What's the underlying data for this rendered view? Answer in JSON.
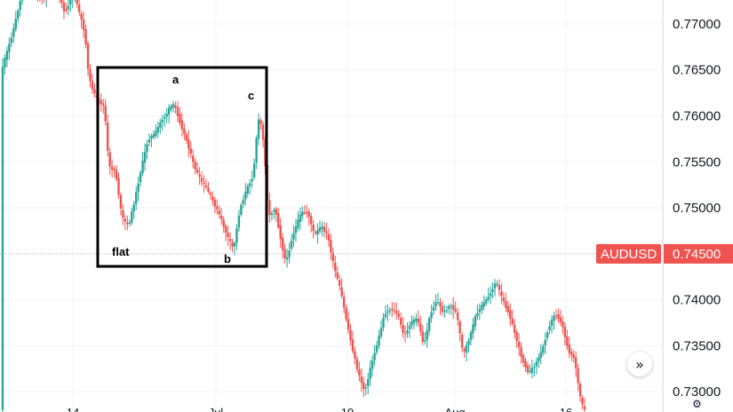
{
  "chart_data": {
    "type": "candlestick",
    "symbol": "AUDUSD",
    "current_price": "0.74500",
    "colors": {
      "up": "#26a69a",
      "down": "#ef5350",
      "tag": "#ef5350",
      "box": "#000000",
      "grid": "#f0f3fa"
    },
    "y_range": [
      0.7278,
      0.7726
    ],
    "y_ticks": [
      "0.77000",
      "0.76500",
      "0.76000",
      "0.75500",
      "0.75000",
      "0.74500",
      "0.74000",
      "0.73500",
      "0.73000"
    ],
    "x_ticks": [
      "14",
      "Jul",
      "19",
      "Aug",
      "16"
    ],
    "annotations": {
      "pattern": "flat",
      "a": "a",
      "b": "b",
      "c": "c"
    },
    "path_knots": [
      [
        0,
        0.765
      ],
      [
        5,
        0.769
      ],
      [
        9,
        0.773
      ],
      [
        14,
        0.774
      ],
      [
        19,
        0.7725
      ],
      [
        24,
        0.7745
      ],
      [
        29,
        0.7712
      ],
      [
        33,
        0.7735
      ],
      [
        38,
        0.769
      ],
      [
        40,
        0.764
      ],
      [
        43,
        0.762
      ],
      [
        47,
        0.761
      ],
      [
        49,
        0.7545
      ],
      [
        52,
        0.754
      ],
      [
        55,
        0.749
      ],
      [
        58,
        0.748
      ],
      [
        61,
        0.751
      ],
      [
        64,
        0.7545
      ],
      [
        67,
        0.7575
      ],
      [
        70,
        0.758
      ],
      [
        73,
        0.7595
      ],
      [
        75,
        0.76
      ],
      [
        77,
        0.761
      ],
      [
        79,
        0.7612
      ],
      [
        82,
        0.759
      ],
      [
        85,
        0.757
      ],
      [
        88,
        0.7545
      ],
      [
        91,
        0.753
      ],
      [
        94,
        0.752
      ],
      [
        97,
        0.7505
      ],
      [
        100,
        0.749
      ],
      [
        103,
        0.747
      ],
      [
        106,
        0.7455
      ],
      [
        109,
        0.75
      ],
      [
        112,
        0.752
      ],
      [
        115,
        0.7535
      ],
      [
        117,
        0.759
      ],
      [
        118,
        0.76
      ],
      [
        120,
        0.7565
      ],
      [
        122,
        0.749
      ],
      [
        125,
        0.75
      ],
      [
        128,
        0.746
      ],
      [
        130,
        0.744
      ],
      [
        133,
        0.747
      ],
      [
        137,
        0.7495
      ],
      [
        140,
        0.7495
      ],
      [
        143,
        0.747
      ],
      [
        146,
        0.748
      ],
      [
        149,
        0.747
      ],
      [
        152,
        0.7435
      ],
      [
        155,
        0.741
      ],
      [
        157,
        0.7385
      ],
      [
        160,
        0.735
      ],
      [
        163,
        0.732
      ],
      [
        166,
        0.73
      ],
      [
        169,
        0.733
      ],
      [
        172,
        0.7355
      ],
      [
        175,
        0.7385
      ],
      [
        178,
        0.739
      ],
      [
        181,
        0.7385
      ],
      [
        184,
        0.736
      ],
      [
        187,
        0.7375
      ],
      [
        190,
        0.738
      ],
      [
        193,
        0.735
      ],
      [
        196,
        0.7385
      ],
      [
        199,
        0.74
      ],
      [
        202,
        0.7385
      ],
      [
        205,
        0.7395
      ],
      [
        208,
        0.7385
      ],
      [
        211,
        0.734
      ],
      [
        214,
        0.736
      ],
      [
        217,
        0.7385
      ],
      [
        220,
        0.7395
      ],
      [
        223,
        0.7405
      ],
      [
        226,
        0.742
      ],
      [
        229,
        0.74
      ],
      [
        232,
        0.7385
      ],
      [
        235,
        0.736
      ],
      [
        238,
        0.7335
      ],
      [
        241,
        0.732
      ],
      [
        244,
        0.733
      ],
      [
        247,
        0.7345
      ],
      [
        250,
        0.737
      ],
      [
        253,
        0.7385
      ],
      [
        256,
        0.7375
      ],
      [
        259,
        0.7345
      ],
      [
        262,
        0.7335
      ],
      [
        264,
        0.73
      ],
      [
        266,
        0.728
      ]
    ]
  }
}
